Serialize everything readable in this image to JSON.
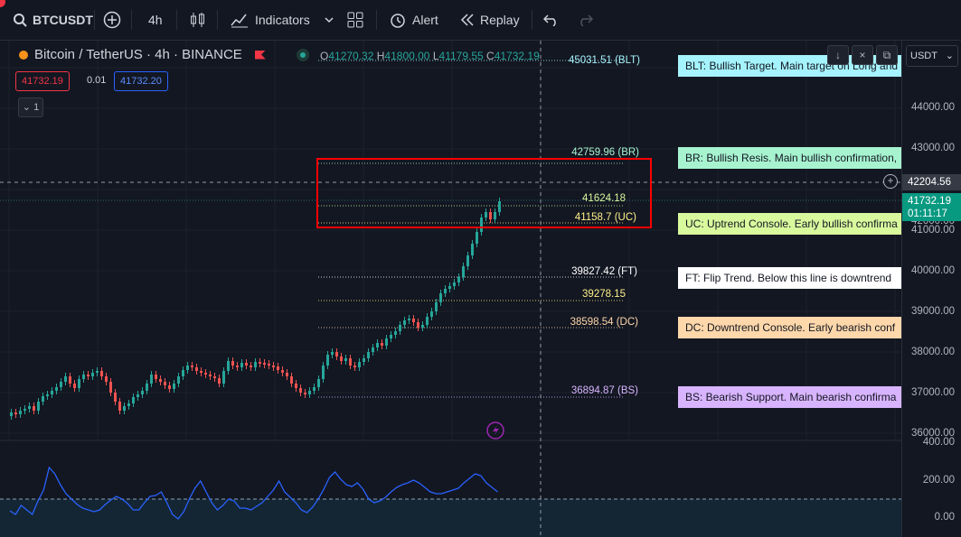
{
  "toolbar": {
    "symbol": "BTCUSDT",
    "interval": "4h",
    "indicators": "Indicators",
    "alert": "Alert",
    "replay": "Replay"
  },
  "legend": {
    "title": "Bitcoin / TetherUS · 4h · BINANCE",
    "o_label": "O",
    "o": "41270.32",
    "h_label": "H",
    "h": "41800.00",
    "l_label": "L",
    "l": "41179.55",
    "c_label": "C",
    "c": "41732.19",
    "sell": "41732.19",
    "spread": "0.01",
    "buy": "41732.20",
    "collapse_count": "1"
  },
  "levels": [
    {
      "text": "45031.51 (BLT)",
      "color": "#a5f3fc"
    },
    {
      "text": "42759.96 (BR)",
      "color": "#a7f3d0"
    },
    {
      "text": "41624.18",
      "color": "#d9f99d"
    },
    {
      "text": "41158.7 (UC)",
      "color": "#fef08a"
    },
    {
      "text": "39827.42 (FT)",
      "color": "#ffffff"
    },
    {
      "text": "39278.15",
      "color": "#fef08a"
    },
    {
      "text": "38598.54 (DC)",
      "color": "#fed7aa"
    },
    {
      "text": "36894.87 (BS)",
      "color": "#d8b4fe"
    }
  ],
  "tags": [
    {
      "text": "BLT: Bullish Target. Main target on Long and",
      "bg": "#a5f3fc"
    },
    {
      "text": "BR: Bullish Resis. Main bullish confirmation,",
      "bg": "#a7f3d0"
    },
    {
      "text": "UC: Uptrend Console. Early bullish confirma",
      "bg": "#d9f99d"
    },
    {
      "text": "FT: Flip Trend. Below this line is downtrend",
      "bg": "#ffffff"
    },
    {
      "text": "DC: Downtrend Console. Early bearish conf",
      "bg": "#fed7aa"
    },
    {
      "text": "BS: Bearish Support. Main bearish confirma",
      "bg": "#d8b4fe"
    }
  ],
  "price_scale": {
    "currency": "USDT",
    "ticks": [
      "44000.00",
      "43000.00",
      "42000.00",
      "41000.00",
      "40000.00",
      "39000.00",
      "38000.00",
      "37000.00",
      "36000.00"
    ],
    "crosshair_price": "42204.56",
    "last_price": "41732.19",
    "countdown": "01:11:17",
    "osc_ticks": [
      "400.00",
      "200.00",
      "0.00"
    ]
  },
  "colors": {
    "up": "#26a69a",
    "down": "#ef5350",
    "osc_line": "#2962ff",
    "highlight_box": "#ff0000"
  }
}
